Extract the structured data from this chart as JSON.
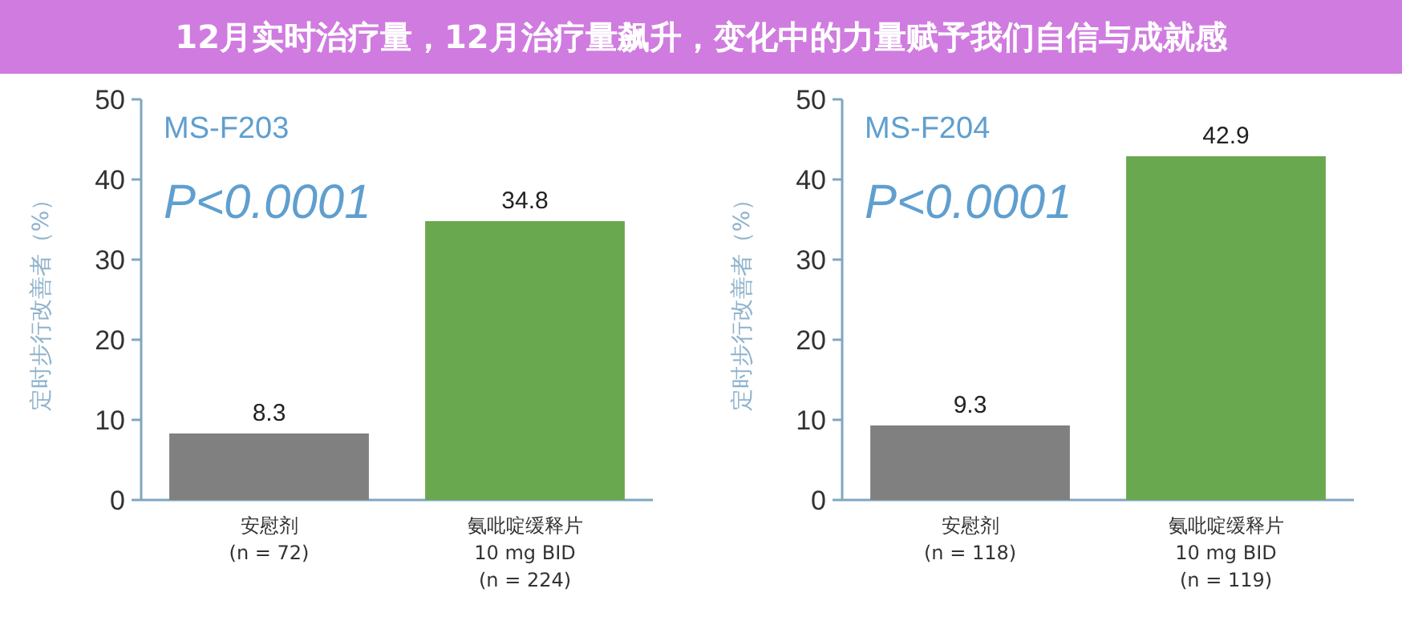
{
  "chart_data": [
    {
      "type": "other",
      "title": "12月实时治疗量，12月治疗量飙升，变化中的力量赋予我们自信与成就感"
    },
    {
      "type": "bar",
      "title": "MS-F203",
      "annotations": [
        "P<0.0001"
      ],
      "ylabel": "定时步行改善者（%）",
      "categories": [
        "安慰剂\n(n = 72)",
        "氨吡啶缓释片\n10 mg BID\n(n = 224)"
      ],
      "values": [
        8.3,
        34.8
      ],
      "colors": [
        "#808080",
        "#6aa84f"
      ],
      "ylim": [
        0,
        50
      ],
      "yticks": [
        0,
        10,
        20,
        30,
        40,
        50
      ],
      "data_labels": true
    },
    {
      "type": "bar",
      "title": "MS-F204",
      "annotations": [
        "P<0.0001"
      ],
      "ylabel": "定时步行改善者（%）",
      "categories": [
        "安慰剂\n(n = 118)",
        "氨吡啶缓释片\n10 mg BID\n(n = 119)"
      ],
      "values": [
        9.3,
        42.9
      ],
      "colors": [
        "#808080",
        "#6aa84f"
      ],
      "ylim": [
        0,
        50
      ],
      "yticks": [
        0,
        10,
        20,
        30,
        40,
        50
      ],
      "data_labels": true
    }
  ]
}
